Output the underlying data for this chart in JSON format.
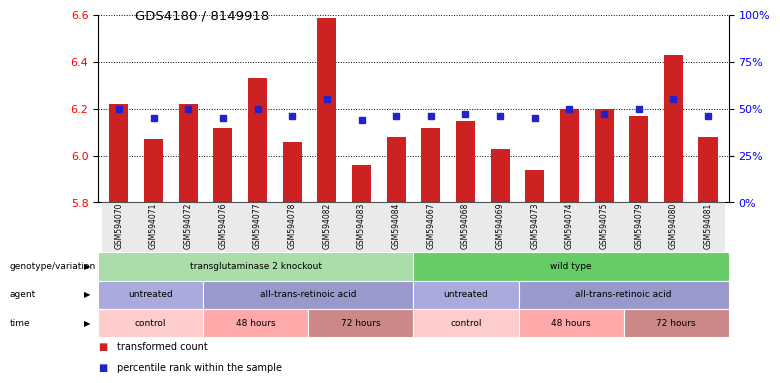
{
  "title": "GDS4180 / 8149918",
  "samples": [
    "GSM594070",
    "GSM594071",
    "GSM594072",
    "GSM594076",
    "GSM594077",
    "GSM594078",
    "GSM594082",
    "GSM594083",
    "GSM594084",
    "GSM594067",
    "GSM594068",
    "GSM594069",
    "GSM594073",
    "GSM594074",
    "GSM594075",
    "GSM594079",
    "GSM594080",
    "GSM594081"
  ],
  "bar_values": [
    6.22,
    6.07,
    6.22,
    6.12,
    6.33,
    6.06,
    6.59,
    5.96,
    6.08,
    6.12,
    6.15,
    6.03,
    5.94,
    6.2,
    6.2,
    6.17,
    6.43,
    6.08
  ],
  "percentile_values": [
    50,
    45,
    50,
    45,
    50,
    46,
    55,
    44,
    46,
    46,
    47,
    46,
    45,
    50,
    47,
    50,
    55,
    46
  ],
  "ylim_left": [
    5.8,
    6.6
  ],
  "ylim_right": [
    0,
    100
  ],
  "yticks_left": [
    5.8,
    6.0,
    6.2,
    6.4,
    6.6
  ],
  "yticks_right": [
    0,
    25,
    50,
    75,
    100
  ],
  "bar_color": "#cc2222",
  "dot_color": "#2222cc",
  "background_color": "#ffffff",
  "genotype_groups": [
    {
      "label": "transglutaminase 2 knockout",
      "start": 0,
      "end": 9,
      "color": "#aaddaa"
    },
    {
      "label": "wild type",
      "start": 9,
      "end": 18,
      "color": "#66cc66"
    }
  ],
  "agent_groups": [
    {
      "label": "untreated",
      "start": 0,
      "end": 3,
      "color": "#aaaadd"
    },
    {
      "label": "all-trans-retinoic acid",
      "start": 3,
      "end": 9,
      "color": "#9999cc"
    },
    {
      "label": "untreated",
      "start": 9,
      "end": 12,
      "color": "#aaaadd"
    },
    {
      "label": "all-trans-retinoic acid",
      "start": 12,
      "end": 18,
      "color": "#9999cc"
    }
  ],
  "time_groups": [
    {
      "label": "control",
      "start": 0,
      "end": 3,
      "color": "#ffcccc"
    },
    {
      "label": "48 hours",
      "start": 3,
      "end": 6,
      "color": "#ffaaaa"
    },
    {
      "label": "72 hours",
      "start": 6,
      "end": 9,
      "color": "#cc8888"
    },
    {
      "label": "control",
      "start": 9,
      "end": 12,
      "color": "#ffcccc"
    },
    {
      "label": "48 hours",
      "start": 12,
      "end": 15,
      "color": "#ffaaaa"
    },
    {
      "label": "72 hours",
      "start": 15,
      "end": 18,
      "color": "#cc8888"
    }
  ],
  "legend_items": [
    {
      "label": "transformed count",
      "color": "#cc2222"
    },
    {
      "label": "percentile rank within the sample",
      "color": "#2222cc"
    }
  ]
}
